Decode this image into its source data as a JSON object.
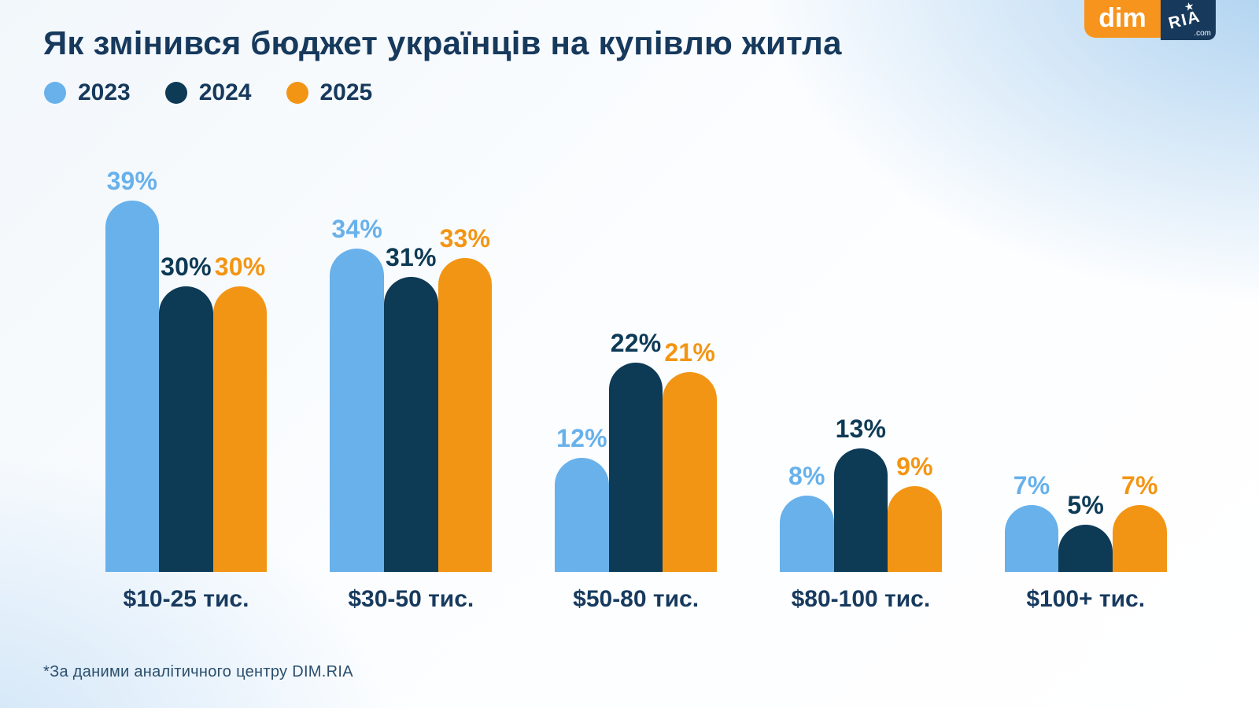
{
  "header": {
    "title": "Як змінився бюджет українців на купівлю житла"
  },
  "legend": {
    "items": [
      {
        "label": "2023",
        "color": "#68b1eb"
      },
      {
        "label": "2024",
        "color": "#0d3a55"
      },
      {
        "label": "2025",
        "color": "#f39514"
      }
    ]
  },
  "logo": {
    "dim_text": "dim",
    "dim_bg": "#f7941e",
    "ria_text": "RIA",
    "ria_star": "★",
    "ria_domain": ".com",
    "ria_bg": "#17395b"
  },
  "footer": {
    "note": "*За даними аналітичного центру DIM.RIA"
  },
  "chart_data": {
    "type": "bar",
    "title": "Як змінився бюджет українців на купівлю житла",
    "categories": [
      "$10-25 тис.",
      "$30-50 тис.",
      "$50-80 тис.",
      "$80-100 тис.",
      "$100+ тис."
    ],
    "series": [
      {
        "name": "2023",
        "color": "#68b1eb",
        "values": [
          39,
          34,
          12,
          8,
          7
        ]
      },
      {
        "name": "2024",
        "color": "#0d3a55",
        "values": [
          30,
          31,
          22,
          13,
          5
        ]
      },
      {
        "name": "2025",
        "color": "#f39514",
        "values": [
          30,
          33,
          21,
          9,
          7
        ]
      }
    ],
    "value_suffix": "%",
    "ylim": [
      0,
      40
    ],
    "grid": false,
    "bar_labels": true,
    "legend_position": "top-left",
    "source_note": "*За даними аналітичного центру DIM.RIA"
  }
}
